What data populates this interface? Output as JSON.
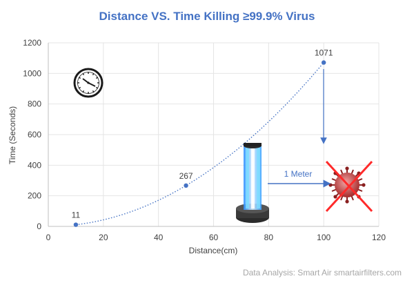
{
  "chart_data": {
    "type": "scatter",
    "title": "Distance VS. Time Killing ≥99.9% Virus",
    "xlabel": "Distance(cm)",
    "ylabel": "Time (Seconds)",
    "xlim": [
      0,
      120
    ],
    "ylim": [
      0,
      1200
    ],
    "x_ticks": [
      0,
      20,
      40,
      60,
      80,
      100,
      120
    ],
    "y_ticks": [
      0,
      200,
      400,
      600,
      800,
      1000,
      1200
    ],
    "grid": true,
    "trendline": "dotted",
    "series": [
      {
        "points": [
          {
            "x": 10,
            "y": 11,
            "label": "11"
          },
          {
            "x": 50,
            "y": 267,
            "label": "267"
          },
          {
            "x": 100,
            "y": 1071,
            "label": "1071"
          }
        ],
        "color": "#4472c4"
      }
    ],
    "annotations": [
      {
        "text": "1 Meter"
      }
    ]
  },
  "footer": {
    "source": "Data Analysis: Smart Air smartairfilters.com"
  },
  "icons": {
    "clock": "clock-icon",
    "uv_lamp": "uv-lamp-icon",
    "virus_crossed": "crossed-out-virus-icon"
  },
  "colors": {
    "accent": "#4472c4",
    "cross": "#ff2a2a",
    "virus": "#b23a3a"
  }
}
